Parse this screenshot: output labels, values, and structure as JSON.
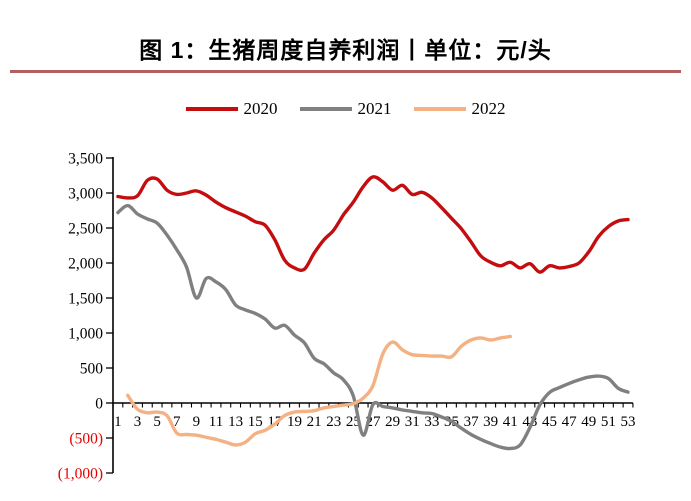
{
  "title": {
    "text": "图 1：生猪周度自养利润丨单位：元/头"
  },
  "chart_data": {
    "type": "line",
    "title": "图 1：生猪周度自养利润丨单位：元/头",
    "unit_label": "元/头",
    "legend_position": "top",
    "grid": false,
    "ylim": [
      -1000,
      3500
    ],
    "xlim_weeks": [
      1,
      53
    ],
    "colors": {
      "axis": "#000000",
      "negative_labels": "#e60000",
      "title_rule": "#b25f5f"
    },
    "y_ticks": [
      {
        "label": "3,500",
        "value": 3500,
        "negative": false
      },
      {
        "label": "3,000",
        "value": 3000,
        "negative": false
      },
      {
        "label": "2,500",
        "value": 2500,
        "negative": false
      },
      {
        "label": "2,000",
        "value": 2000,
        "negative": false
      },
      {
        "label": "1,500",
        "value": 1500,
        "negative": false
      },
      {
        "label": "1,000",
        "value": 1000,
        "negative": false
      },
      {
        "label": "500",
        "value": 500,
        "negative": false
      },
      {
        "label": "0",
        "value": 0,
        "negative": false
      },
      {
        "label": "(500)",
        "value": -500,
        "negative": true
      },
      {
        "label": "(1,000)",
        "value": -1000,
        "negative": true
      }
    ],
    "x_ticks": [
      "1",
      "3",
      "5",
      "7",
      "9",
      "11",
      "13",
      "15",
      "17",
      "19",
      "21",
      "23",
      "25",
      "27",
      "29",
      "31",
      "33",
      "35",
      "37",
      "39",
      "41",
      "43",
      "45",
      "47",
      "49",
      "51",
      "53"
    ],
    "series": [
      {
        "name": "2020",
        "color": "#c40d0f",
        "start_week": 1,
        "values": [
          2950,
          2930,
          2960,
          3180,
          3200,
          3040,
          2980,
          3000,
          3030,
          2970,
          2870,
          2790,
          2730,
          2670,
          2590,
          2540,
          2330,
          2040,
          1930,
          1910,
          2140,
          2330,
          2470,
          2690,
          2870,
          3090,
          3230,
          3160,
          3040,
          3110,
          2980,
          3010,
          2930,
          2790,
          2640,
          2490,
          2300,
          2100,
          2010,
          1960,
          2010,
          1930,
          1990,
          1870,
          1960,
          1930,
          1950,
          2000,
          2160,
          2380,
          2520,
          2600,
          2620
        ]
      },
      {
        "name": "2021",
        "color": "#808080",
        "start_week": 1,
        "values": [
          2720,
          2820,
          2700,
          2630,
          2570,
          2400,
          2190,
          1940,
          1500,
          1780,
          1730,
          1620,
          1400,
          1330,
          1280,
          1200,
          1070,
          1110,
          970,
          860,
          640,
          560,
          430,
          330,
          100,
          -460,
          -20,
          -50,
          -70,
          -100,
          -120,
          -140,
          -150,
          -200,
          -260,
          -360,
          -450,
          -520,
          -580,
          -630,
          -650,
          -600,
          -350,
          -30,
          150,
          220,
          280,
          330,
          370,
          385,
          350,
          210,
          155
        ]
      },
      {
        "name": "2022",
        "color": "#f4b183",
        "start_week": 2,
        "values": [
          110,
          -90,
          -140,
          -130,
          -180,
          -430,
          -450,
          -460,
          -490,
          -520,
          -560,
          -600,
          -560,
          -440,
          -390,
          -300,
          -180,
          -130,
          -120,
          -110,
          -70,
          -50,
          -30,
          -10,
          70,
          250,
          700,
          870,
          760,
          690,
          680,
          670,
          670,
          660,
          810,
          900,
          930,
          900,
          930,
          950
        ]
      }
    ]
  }
}
